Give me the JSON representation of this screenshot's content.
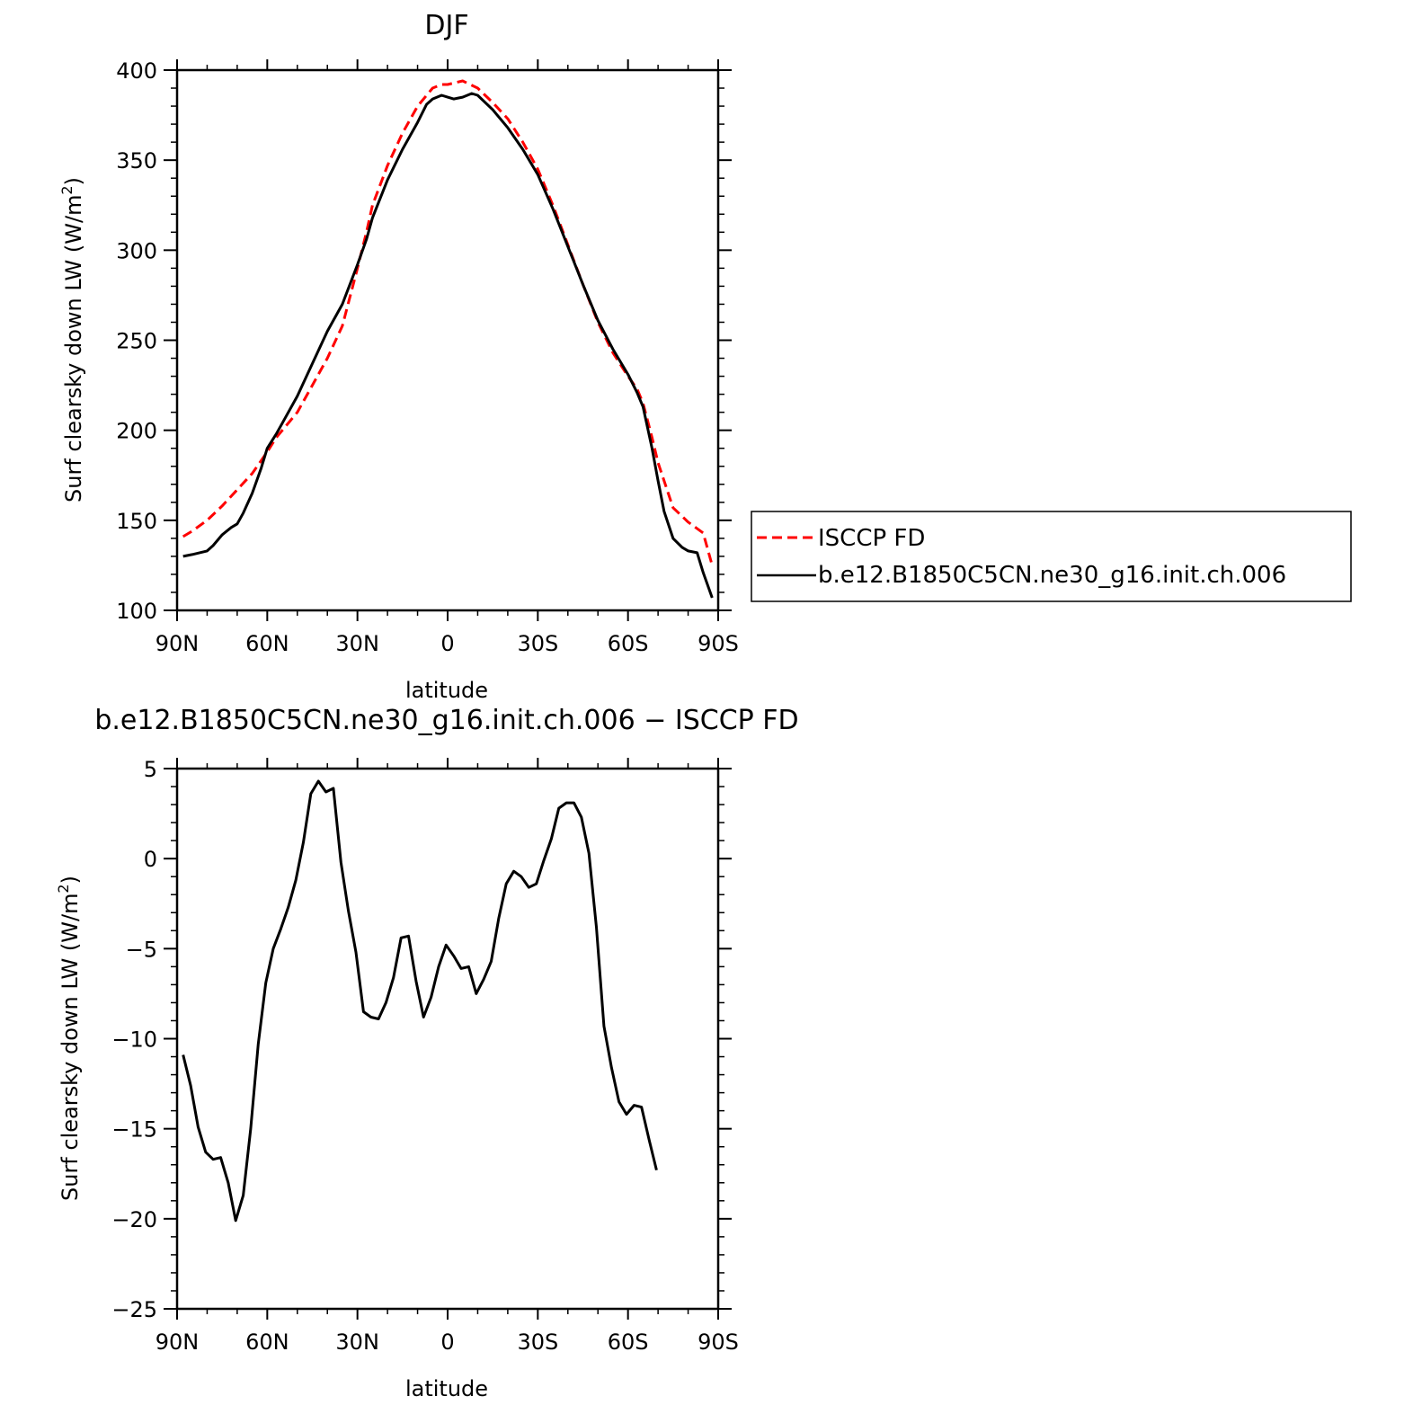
{
  "chart_data": [
    {
      "type": "line",
      "title": "DJF",
      "xlabel": "latitude",
      "ylabel": "Surf clearsky down LW (W/m",
      "ylabel_sup": "2",
      "ylabel_end": ")",
      "xlim": [
        90,
        -90
      ],
      "ylim": [
        100,
        400
      ],
      "xticks": [
        {
          "value": 90,
          "label": "90N"
        },
        {
          "value": 60,
          "label": "60N"
        },
        {
          "value": 30,
          "label": "30N"
        },
        {
          "value": 0,
          "label": "0"
        },
        {
          "value": -30,
          "label": "30S"
        },
        {
          "value": -60,
          "label": "60S"
        },
        {
          "value": -90,
          "label": "90S"
        }
      ],
      "yticks": [
        {
          "value": 400,
          "label": "400"
        },
        {
          "value": 350,
          "label": "350"
        },
        {
          "value": 300,
          "label": "300"
        },
        {
          "value": 250,
          "label": "250"
        },
        {
          "value": 200,
          "label": "200"
        },
        {
          "value": 150,
          "label": "150"
        },
        {
          "value": 100,
          "label": "100"
        }
      ],
      "legend_position": "right",
      "series": [
        {
          "name": "ISCCP FD",
          "color": "#ff0000",
          "dash": "dashed",
          "x": [
            88,
            85,
            80,
            75,
            70,
            65,
            60,
            57,
            55,
            50,
            45,
            40,
            35,
            30,
            27,
            25,
            20,
            15,
            10,
            5,
            2,
            0,
            -5,
            -10,
            -15,
            -20,
            -25,
            -30,
            -35,
            -40,
            -45,
            -50,
            -55,
            -60,
            -63,
            -65,
            -68,
            -70,
            -75,
            -80,
            -85,
            -88
          ],
          "y": [
            141,
            144,
            150,
            158,
            167,
            176,
            188,
            196,
            200,
            210,
            225,
            240,
            258,
            290,
            310,
            325,
            347,
            365,
            380,
            390,
            392,
            392,
            394,
            390,
            382,
            373,
            360,
            345,
            325,
            303,
            281,
            260,
            243,
            230,
            223,
            215,
            196,
            182,
            157,
            149,
            143,
            125
          ]
        },
        {
          "name": "b.e12.B1850C5CN.ne30_g16.init.ch.006",
          "color": "#000000",
          "dash": "solid",
          "x": [
            88,
            85,
            80,
            78,
            75,
            72,
            70,
            68,
            65,
            62,
            60,
            57,
            55,
            50,
            45,
            40,
            35,
            30,
            27,
            25,
            20,
            15,
            10,
            7,
            5,
            2,
            0,
            -2,
            -5,
            -8,
            -10,
            -15,
            -20,
            -25,
            -30,
            -35,
            -40,
            -45,
            -50,
            -55,
            -60,
            -63,
            -65,
            -68,
            -70,
            -72,
            -75,
            -78,
            -80,
            -83,
            -85,
            -88
          ],
          "y": [
            130,
            131,
            133,
            136,
            142,
            146,
            148,
            154,
            165,
            179,
            190,
            198,
            204,
            219,
            237,
            255,
            270,
            292,
            306,
            318,
            339,
            356,
            371,
            381,
            384,
            386,
            385,
            384,
            385,
            387,
            386,
            378,
            368,
            356,
            342,
            323,
            302,
            281,
            261,
            245,
            231,
            221,
            213,
            190,
            172,
            155,
            140,
            135,
            133,
            132,
            121,
            107
          ]
        }
      ]
    },
    {
      "type": "line",
      "title": "b.e12.B1850C5CN.ne30_g16.init.ch.006 − ISCCP FD",
      "xlabel": "latitude",
      "ylabel": "Surf clearsky down LW (W/m",
      "ylabel_sup": "2",
      "ylabel_end": ")",
      "xlim": [
        90,
        -90
      ],
      "ylim": [
        -25,
        5
      ],
      "xticks": [
        {
          "value": 90,
          "label": "90N"
        },
        {
          "value": 60,
          "label": "60N"
        },
        {
          "value": 30,
          "label": "30N"
        },
        {
          "value": 0,
          "label": "0"
        },
        {
          "value": -30,
          "label": "30S"
        },
        {
          "value": -60,
          "label": "60S"
        },
        {
          "value": -90,
          "label": "90S"
        }
      ],
      "yticks": [
        {
          "value": 5,
          "label": "5"
        },
        {
          "value": 0,
          "label": "0"
        },
        {
          "value": -5,
          "label": "−5"
        },
        {
          "value": -10,
          "label": "−10"
        },
        {
          "value": -15,
          "label": "−15"
        },
        {
          "value": -20,
          "label": "−20"
        },
        {
          "value": -25,
          "label": "−25"
        }
      ],
      "series": [
        {
          "color": "#000000",
          "dash": "solid",
          "x": [
            88,
            85.5,
            83,
            80.5,
            78,
            75.5,
            73,
            70.5,
            68,
            65.5,
            63,
            60.5,
            58,
            55.5,
            53,
            50.5,
            48,
            45.5,
            43,
            40.5,
            38,
            35.5,
            33,
            30.5,
            28,
            25.5,
            23,
            20.5,
            18,
            15.5,
            13,
            10.5,
            8,
            5.5,
            3,
            0.5,
            -2,
            -4.5,
            -7,
            -9.5,
            -12,
            -14.5,
            -17,
            -19.5,
            -22,
            -24.5,
            -27,
            -29.5,
            -32,
            -34.5,
            -37,
            -39.5,
            -42,
            -44.5,
            -47,
            -49.5,
            -52,
            -54.5,
            -57,
            -59.5,
            -62,
            -64.5,
            -67,
            -69.5,
            -72,
            -74.5,
            -77,
            -79.5,
            -82,
            -84.5,
            -87
          ],
          "y": [
            -10.9,
            -12.6,
            -14.9,
            -16.3,
            -16.7,
            -16.6,
            -18.0,
            -20.1,
            -18.7,
            -15.0,
            -10.3,
            -6.9,
            -5.0,
            -3.9,
            -2.7,
            -1.2,
            0.9,
            3.6,
            4.3,
            3.7,
            3.9,
            -0.2,
            -2.9,
            -5.2,
            -8.5,
            -8.8,
            -8.9,
            -8.0,
            -6.6,
            -4.4,
            -4.3,
            -6.8,
            -8.8,
            -7.7,
            -6.0,
            -4.8,
            -5.4,
            -6.1,
            -6.0,
            -7.5,
            -6.7,
            -5.7,
            -3.3,
            -1.4,
            -0.7,
            -1.0,
            -1.6,
            -1.4,
            -0.1,
            1.1,
            2.8,
            3.1,
            3.1,
            2.3,
            0.3,
            -3.8,
            -9.3,
            -11.6,
            -13.5,
            -14.2,
            -13.7,
            -13.8,
            -15.6,
            -17.3,
            null,
            null,
            null,
            null,
            null,
            null,
            null
          ]
        }
      ]
    }
  ]
}
